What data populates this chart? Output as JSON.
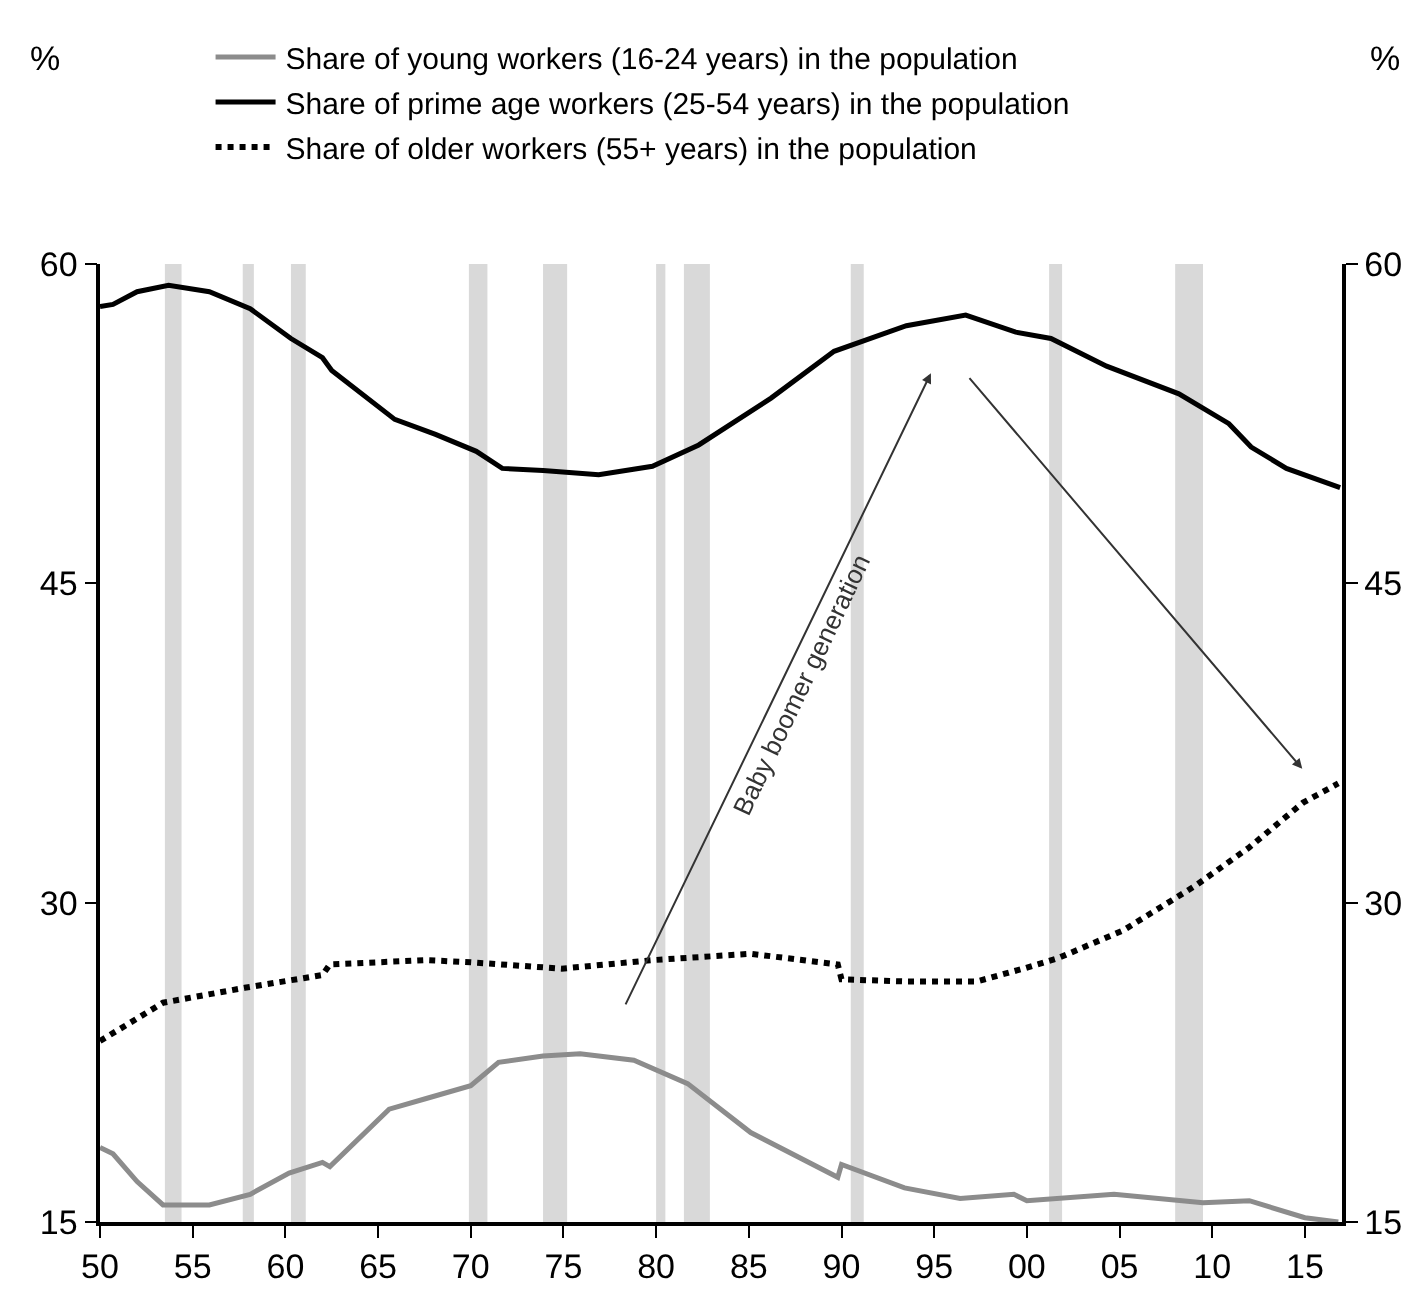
{
  "chart_data": {
    "type": "line",
    "ylabel": "%",
    "y2label": "%",
    "legend": "top",
    "grid": false,
    "marker": "none",
    "xlim": [
      1950,
      2017
    ],
    "xticks": [
      {
        "value": 1950,
        "label": "50"
      },
      {
        "value": 1955,
        "label": "55"
      },
      {
        "value": 1960,
        "label": "60"
      },
      {
        "value": 1965,
        "label": "65"
      },
      {
        "value": 1970,
        "label": "70"
      },
      {
        "value": 1975,
        "label": "75"
      },
      {
        "value": 1980,
        "label": "80"
      },
      {
        "value": 1985,
        "label": "85"
      },
      {
        "value": 1990,
        "label": "90"
      },
      {
        "value": 1995,
        "label": "95"
      },
      {
        "value": 2000,
        "label": "00"
      },
      {
        "value": 2005,
        "label": "05"
      },
      {
        "value": 2010,
        "label": "10"
      },
      {
        "value": 2015,
        "label": "15"
      }
    ],
    "ylim": [
      15,
      60
    ],
    "yticks": [
      15,
      30,
      45,
      60
    ],
    "y2lim": [
      15,
      60
    ],
    "y2ticks": [
      15,
      30,
      45,
      60
    ],
    "series": [
      {
        "name": "Share of young workers (16-24 years) in the population",
        "color": "#8c8c8c",
        "line_style": "solid",
        "x": [
          1950,
          1950.7,
          1952,
          1953.4,
          1955.9,
          1958.1,
          1960.2,
          1962,
          1962.4,
          1965.6,
          1967.6,
          1970,
          1971.5,
          1973.9,
          1975.9,
          1978.8,
          1981.7,
          1985.1,
          1989.8,
          1990,
          1993.4,
          1996.4,
          1999.3,
          2000,
          2004.7,
          2009.5,
          2012,
          2015,
          2016.8
        ],
        "values": [
          18.5,
          18.2,
          16.9,
          15.8,
          15.8,
          16.3,
          17.3,
          17.8,
          17.6,
          20.3,
          20.8,
          21.4,
          22.5,
          22.8,
          22.9,
          22.6,
          21.5,
          19.2,
          17.1,
          17.7,
          16.6,
          16.1,
          16.3,
          16.0,
          16.3,
          15.9,
          16.0,
          15.2,
          15.0
        ]
      },
      {
        "name": "Share of prime age workers (25-54 years) in the population",
        "color": "#000000",
        "line_style": "solid",
        "x": [
          1950,
          1950.7,
          1952,
          1953.7,
          1955.9,
          1958.1,
          1960.3,
          1962,
          1962.5,
          1965.9,
          1968.1,
          1970.3,
          1971.7,
          1973.9,
          1976.9,
          1979.8,
          1982.3,
          1986.2,
          1989.6,
          1993.5,
          1996.7,
          1999.4,
          2001.3,
          2004.3,
          2008.2,
          2010.9,
          2012.1,
          2014,
          2016.9
        ],
        "values": [
          58.0,
          58.1,
          58.7,
          59.0,
          58.7,
          57.9,
          56.5,
          55.6,
          55.0,
          52.7,
          52.0,
          51.2,
          50.4,
          50.3,
          50.1,
          50.5,
          51.5,
          53.7,
          55.9,
          57.1,
          57.6,
          56.8,
          56.5,
          55.2,
          53.9,
          52.5,
          51.4,
          50.4,
          49.5
        ]
      },
      {
        "name": "Share of older workers (55+ years) in the population",
        "color": "#000000",
        "line_style": "dotted",
        "x": [
          1950,
          1953.4,
          1957.8,
          1962,
          1962.4,
          1967.6,
          1970,
          1974.9,
          1979.8,
          1985.1,
          1989.8,
          1990,
          1993.4,
          1997.3,
          1999.8,
          2001.7,
          2005.2,
          2009.1,
          2012,
          2014.9,
          2016.8
        ],
        "values": [
          23.5,
          25.3,
          26.0,
          26.6,
          27.1,
          27.3,
          27.2,
          26.9,
          27.3,
          27.6,
          27.1,
          26.4,
          26.3,
          26.3,
          26.9,
          27.4,
          28.7,
          30.8,
          32.6,
          34.7,
          35.6
        ]
      }
    ],
    "bands": [
      {
        "axis": "x",
        "from": 1953.5,
        "to": 1954.4,
        "color": "#d9d9d9"
      },
      {
        "axis": "x",
        "from": 1957.7,
        "to": 1958.3,
        "color": "#d9d9d9"
      },
      {
        "axis": "x",
        "from": 1960.3,
        "to": 1961.1,
        "color": "#d9d9d9"
      },
      {
        "axis": "x",
        "from": 1969.9,
        "to": 1970.9,
        "color": "#d9d9d9"
      },
      {
        "axis": "x",
        "from": 1973.9,
        "to": 1975.2,
        "color": "#d9d9d9"
      },
      {
        "axis": "x",
        "from": 1980.0,
        "to": 1980.5,
        "color": "#d9d9d9"
      },
      {
        "axis": "x",
        "from": 1981.5,
        "to": 1982.9,
        "color": "#d9d9d9"
      },
      {
        "axis": "x",
        "from": 1990.5,
        "to": 1991.2,
        "color": "#d9d9d9"
      },
      {
        "axis": "x",
        "from": 2001.2,
        "to": 2001.9,
        "color": "#d9d9d9"
      },
      {
        "axis": "x",
        "from": 2008.0,
        "to": 2009.5,
        "color": "#d9d9d9"
      }
    ],
    "annotations": [
      "Baby boomer generation"
    ]
  }
}
